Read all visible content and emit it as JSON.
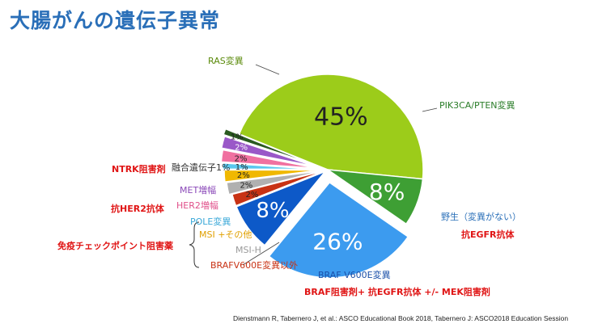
{
  "title": "大腸がんの遺伝子異常",
  "colors": {
    "title": "#2a6fb8",
    "ras": "#9ccc1a",
    "pik3ca": "#3e9f34",
    "wild": "#3c9bef",
    "braf_v600e": "#0d59c8",
    "braf_other": "#c83214",
    "msi_h": "#b0b0b0",
    "msi_other": "#f0b800",
    "pole": "#5ac8ef",
    "her2": "#f070a0",
    "met": "#9a58c8",
    "fusion": "#2a5a20",
    "annotation_red": "#e01515"
  },
  "chart_data": {
    "type": "pie",
    "slices": [
      {
        "name": "RAS変異",
        "value": 45,
        "label": "45%",
        "color": "#9ccc1a",
        "label_color": "#222222"
      },
      {
        "name": "PIK3CA/PTEN変異",
        "value": 8,
        "label": "8%",
        "color": "#3e9f34",
        "label_color": "#ffffff"
      },
      {
        "name": "野生（変異がない）",
        "value": 26,
        "label": "26%",
        "color": "#3c9bef",
        "label_color": "#ffffff"
      },
      {
        "name": "BRAF V600E変異",
        "value": 8,
        "label": "8%",
        "color": "#0d59c8",
        "label_color": "#ffffff"
      },
      {
        "name": "BRAFV600E変異以外",
        "value": 2,
        "label": "2%",
        "color": "#c83214",
        "label_color": "#222222"
      },
      {
        "name": "MSI-H",
        "value": 2,
        "label": "2%",
        "color": "#b0b0b0",
        "label_color": "#222222"
      },
      {
        "name": "MSI +その他",
        "value": 2,
        "label": "2%",
        "color": "#f0b800",
        "label_color": "#222222"
      },
      {
        "name": "POLE変異",
        "value": 1,
        "label": "1%",
        "color": "#5ac8ef",
        "label_color": "#222222"
      },
      {
        "name": "HER2増幅",
        "value": 2,
        "label": "2%",
        "color": "#f070a0",
        "label_color": "#222222"
      },
      {
        "name": "MET増幅",
        "value": 2,
        "label": "2%",
        "color": "#9a58c8",
        "label_color": "#ffffff"
      },
      {
        "name": "融合遺伝子",
        "value": 1,
        "label": "1%",
        "color": "#2a5a20",
        "label_color": "#222222"
      }
    ]
  },
  "annotations": {
    "ntrk": "NTRK阻害剤",
    "her2": "抗HER2抗体",
    "immune": "免疫チェックポイント阻害薬",
    "wild": "抗EGFR抗体",
    "braf": "BRAF阻害剤+ 抗EGFR抗体 +/- MEK阻害剤"
  },
  "citation": "Dienstmann R, Tabernero J, et al.: ASCO Educational Book 2018, Tabernero J: ASCO2018 Education Session"
}
